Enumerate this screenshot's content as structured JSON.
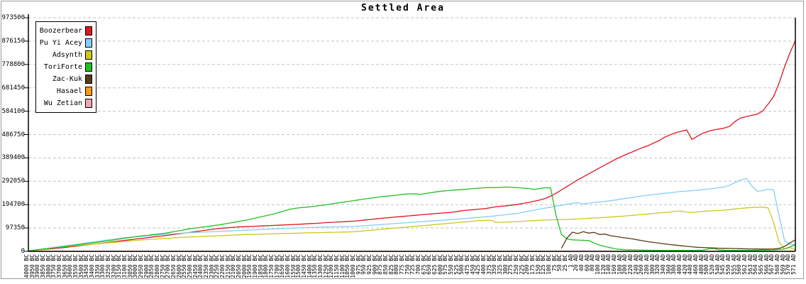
{
  "chart_data": {
    "type": "line",
    "title": "Settled Area",
    "grid": "horizontal-dashed",
    "grid_color": "#c4c4c4",
    "axis_color": "#000000",
    "legend_position": "top-left",
    "ylim": [
      0,
      973500
    ],
    "y_ticks": [
      0,
      97350,
      194700,
      292050,
      389400,
      486750,
      584100,
      681450,
      778800,
      876150,
      973500
    ],
    "x_labels": [
      "4000 BC",
      "3950 BC",
      "3900 BC",
      "3850 BC",
      "3800 BC",
      "3750 BC",
      "3700 BC",
      "3650 BC",
      "3600 BC",
      "3550 BC",
      "3500 BC",
      "3450 BC",
      "3400 BC",
      "3350 BC",
      "3300 BC",
      "3250 BC",
      "3200 BC",
      "3150 BC",
      "3100 BC",
      "3050 BC",
      "3000 BC",
      "2950 BC",
      "2900 BC",
      "2850 BC",
      "2800 BC",
      "2750 BC",
      "2700 BC",
      "2650 BC",
      "2600 BC",
      "2550 BC",
      "2500 BC",
      "2450 BC",
      "2400 BC",
      "2350 BC",
      "2300 BC",
      "2250 BC",
      "2200 BC",
      "2150 BC",
      "2100 BC",
      "2050 BC",
      "2000 BC",
      "1950 BC",
      "1900 BC",
      "1850 BC",
      "1800 BC",
      "1750 BC",
      "1700 BC",
      "1650 BC",
      "1600 BC",
      "1550 BC",
      "1500 BC",
      "1450 BC",
      "1400 BC",
      "1350 BC",
      "1300 BC",
      "1250 BC",
      "1200 BC",
      "1150 BC",
      "1100 BC",
      "1050 BC",
      "1000 BC",
      "975 BC",
      "950 BC",
      "925 BC",
      "900 BC",
      "875 BC",
      "850 BC",
      "825 BC",
      "800 BC",
      "775 BC",
      "750 BC",
      "725 BC",
      "700 BC",
      "675 BC",
      "650 BC",
      "625 BC",
      "600 BC",
      "575 BC",
      "550 BC",
      "525 BC",
      "500 BC",
      "475 BC",
      "450 BC",
      "425 BC",
      "400 BC",
      "375 BC",
      "350 BC",
      "325 BC",
      "300 BC",
      "275 BC",
      "250 BC",
      "225 BC",
      "200 BC",
      "175 BC",
      "150 BC",
      "125 BC",
      "100 BC",
      "75 BC",
      "50 BC",
      "25 BC",
      "1 AD",
      "20 AD",
      "40 AD",
      "60 AD",
      "80 AD",
      "100 AD",
      "120 AD",
      "140 AD",
      "160 AD",
      "180 AD",
      "200 AD",
      "220 AD",
      "240 AD",
      "260 AD",
      "280 AD",
      "300 AD",
      "320 AD",
      "340 AD",
      "360 AD",
      "380 AD",
      "400 AD",
      "420 AD",
      "440 AD",
      "460 AD",
      "480 AD",
      "500 AD",
      "520 AD",
      "540 AD",
      "545 AD",
      "550 AD",
      "555 AD",
      "560 AD",
      "562 AD",
      "563 AD",
      "564 AD",
      "565 AD",
      "566 AD",
      "567 AD",
      "568 AD",
      "569 AD",
      "570 AD",
      "571 AD"
    ],
    "series": [
      {
        "name": "Boozerbear",
        "color": "#e2131f",
        "values": [
          2000,
          4000,
          6000,
          8000,
          10000,
          12000,
          14500,
          17000,
          19500,
          22000,
          25000,
          27500,
          30000,
          32500,
          35000,
          38000,
          41000,
          44000,
          46500,
          49000,
          52000,
          54500,
          57000,
          60000,
          62500,
          65000,
          68000,
          71000,
          74000,
          77000,
          80000,
          83000,
          86000,
          89000,
          92000,
          95000,
          97000,
          99000,
          100500,
          102000,
          103000,
          104000,
          105000,
          106000,
          107000,
          108000,
          109000,
          110000,
          111000,
          112000,
          113000,
          114500,
          116000,
          117000,
          118500,
          120000,
          121000,
          122500,
          123500,
          125000,
          126000,
          128500,
          131000,
          133000,
          135500,
          138000,
          140000,
          142000,
          144000,
          146000,
          148000,
          150000,
          152000,
          154000,
          156000,
          158000,
          159500,
          161000,
          163000,
          166500,
          170000,
          172000,
          174000,
          176000,
          178000,
          182000,
          186000,
          188000,
          190000,
          193000,
          196000,
          200000,
          204000,
          209000,
          214000,
          220000,
          230000,
          242000,
          256000,
          270000,
          284000,
          298000,
          310000,
          323000,
          335000,
          348000,
          360000,
          372000,
          384000,
          395000,
          405000,
          414000,
          424000,
          433000,
          441000,
          452000,
          462000,
          476000,
          486000,
          494000,
          500000,
          506000,
          466000,
          480000,
          492000,
          500000,
          506000,
          510000,
          514000,
          522000,
          543000,
          556000,
          562000,
          567000,
          572000,
          585000,
          614000,
          645000,
          700000,
          768000,
          826000,
          878000
        ]
      },
      {
        "name": "Pu Yi Acey",
        "color": "#86cefa",
        "values": [
          1000,
          4000,
          7000,
          10000,
          14000,
          18000,
          21000,
          24000,
          27000,
          30000,
          33000,
          36000,
          39000,
          42000,
          46000,
          49000,
          52000,
          55000,
          57000,
          59000,
          61000,
          63000,
          65000,
          67000,
          69000,
          71000,
          72500,
          74000,
          75500,
          77000,
          78000,
          79000,
          80000,
          81000,
          82000,
          83000,
          84000,
          85000,
          86000,
          87000,
          88000,
          89000,
          90000,
          91000,
          92000,
          93000,
          94000,
          95000,
          96000,
          97000,
          98000,
          99000,
          99500,
          100000,
          101000,
          101500,
          102000,
          102500,
          103000,
          103500,
          104000,
          105500,
          107000,
          108500,
          110000,
          112000,
          113500,
          115000,
          117000,
          118500,
          120000,
          121500,
          123000,
          125000,
          126500,
          128000,
          129500,
          131000,
          133000,
          134500,
          136000,
          138000,
          140000,
          142000,
          144000,
          146000,
          148500,
          151000,
          153500,
          156000,
          158000,
          163000,
          168000,
          172000,
          176000,
          180000,
          184000,
          188000,
          192000,
          196000,
          200000,
          203000,
          198000,
          200000,
          204000,
          206000,
          208000,
          211000,
          214000,
          218000,
          221000,
          224000,
          228000,
          231000,
          234000,
          237000,
          239000,
          242000,
          244000,
          247000,
          250000,
          251000,
          253000,
          255000,
          257000,
          260000,
          262000,
          265000,
          269000,
          276000,
          288000,
          298000,
          304000,
          272000,
          250000,
          253000,
          259000,
          256000,
          150000,
          45000,
          30000,
          27000
        ]
      },
      {
        "name": "Adsynth",
        "color": "#cdc81d",
        "values": [
          1500,
          4000,
          6500,
          9000,
          12000,
          15000,
          17500,
          20000,
          22000,
          24000,
          26000,
          28000,
          30000,
          32000,
          34000,
          36000,
          38000,
          40000,
          42000,
          44000,
          46000,
          47500,
          49000,
          50500,
          52000,
          53500,
          55000,
          56500,
          58000,
          59000,
          60000,
          61000,
          62000,
          63000,
          64000,
          65000,
          66000,
          67000,
          68000,
          69000,
          70000,
          70500,
          71000,
          72000,
          72500,
          73000,
          74000,
          74500,
          75000,
          75500,
          76000,
          77000,
          77500,
          78000,
          78500,
          79000,
          79500,
          80000,
          80500,
          81000,
          82000,
          84000,
          86000,
          88000,
          90000,
          92000,
          94000,
          96000,
          98000,
          100000,
          102000,
          104000,
          106000,
          108000,
          110000,
          112000,
          114000,
          116000,
          118000,
          120000,
          122000,
          124000,
          126000,
          128000,
          129000,
          130000,
          120000,
          121000,
          122000,
          123000,
          124000,
          125500,
          127000,
          128000,
          129500,
          130500,
          131500,
          132000,
          132500,
          133000,
          134000,
          135000,
          136500,
          137500,
          139000,
          140000,
          141500,
          143000,
          144500,
          146000,
          148000,
          150000,
          152000,
          154000,
          156000,
          158000,
          160000,
          162000,
          164000,
          167000,
          168000,
          163000,
          162500,
          164000,
          166500,
          168000,
          169000,
          170000,
          172000,
          174000,
          177000,
          179000,
          181000,
          182500,
          184000,
          184000,
          181000,
          120000,
          40000,
          10000,
          16000,
          6000
        ]
      },
      {
        "name": "ToriForte",
        "color": "#1fc11f",
        "values": [
          2000,
          5000,
          8000,
          11000,
          13000,
          15000,
          18000,
          21000,
          24000,
          27000,
          30000,
          33000,
          36000,
          39000,
          42000,
          45000,
          48500,
          52000,
          55500,
          58500,
          62000,
          64500,
          67000,
          70000,
          72500,
          75000,
          79000,
          83000,
          87000,
          91000,
          95000,
          98000,
          101000,
          104000,
          107000,
          110000,
          114000,
          118000,
          122000,
          126000,
          130000,
          135000,
          140000,
          145000,
          150000,
          155000,
          162000,
          168000,
          175000,
          179000,
          182000,
          184000,
          186000,
          189000,
          192000,
          195000,
          198500,
          202000,
          205000,
          208500,
          212000,
          215500,
          219000,
          222000,
          225000,
          228000,
          230000,
          232500,
          235000,
          237500,
          240000,
          239000,
          238000,
          241000,
          244500,
          248000,
          250500,
          253000,
          255000,
          256500,
          258000,
          260000,
          262000,
          263500,
          265000,
          265500,
          266000,
          267000,
          268000,
          266500,
          265000,
          263500,
          262000,
          258000,
          262000,
          265000,
          264000,
          150000,
          70000,
          52000,
          48000,
          47000,
          46000,
          45000,
          35000,
          26000,
          20000,
          15000,
          10000,
          8000,
          6500,
          6000,
          5500,
          5000,
          4500,
          4500,
          4000,
          4000,
          4000,
          4000,
          4000,
          4000,
          4000,
          4500,
          5000,
          10000,
          12000,
          6000,
          4500,
          4000,
          4000,
          4000,
          4500,
          4500,
          5000,
          5500,
          6000,
          6500,
          8000,
          10000,
          18000,
          28000
        ]
      },
      {
        "name": "Zac-Kuk",
        "color": "#5a3a14",
        "start_index": 98,
        "values": [
          12000,
          55000,
          80000,
          74000,
          82000,
          76000,
          79000,
          70000,
          72000,
          65000,
          62000,
          58000,
          55000,
          52000,
          48000,
          44000,
          40000,
          37000,
          34000,
          31000,
          28000,
          26000,
          23000,
          21000,
          19000,
          17000,
          16000,
          15000,
          14000,
          13000,
          12500,
          12000,
          11500,
          11000,
          10500,
          10000,
          10000,
          9500,
          9500,
          10000,
          12000,
          20000,
          35000,
          48000
        ]
      },
      {
        "name": "Hasael",
        "color": "#f89a16",
        "constant": 0
      },
      {
        "name": "Wu Zetian",
        "color": "#f0a3b0",
        "constant": 0
      }
    ]
  }
}
